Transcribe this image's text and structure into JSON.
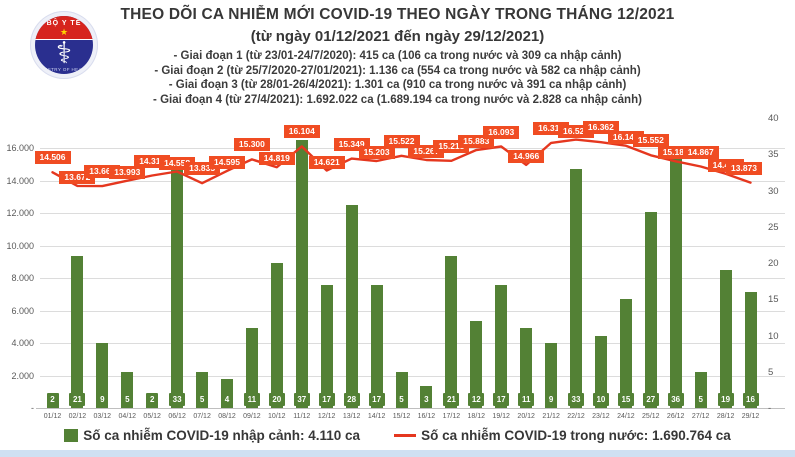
{
  "logo": {
    "arc_text": "BỘ Y TẾ",
    "bottom_text": "MINISTRY OF HEALTH",
    "colors": {
      "red": "#d6241e",
      "blue": "#2a2f8f",
      "star": "#ffd400"
    }
  },
  "chart_data": {
    "type": "combo-bar-line",
    "title": "THEO DÕI CA NHIỄM MỚI COVID-19 THEO NGÀY TRONG THÁNG 12/2021",
    "subtitle": "(từ ngày 01/12/2021 đến ngày 29/12/2021)",
    "annotations": [
      "- Giai đoạn 1 (từ 23/01-24/7/2020): 415 ca (106 ca trong nước và 309 ca nhập cảnh)",
      "- Giai đoạn 2 (từ 25/7/2020-27/01/2021): 1.136 ca (554 ca trong nước và 582 ca nhập cảnh)",
      "- Giai đoạn 3 (từ 28/01-26/4/2021): 1.301 ca (910 ca trong nước và 391 ca nhập cảnh)",
      "- Giai đoạn 4 (từ 27/4/2021): 1.692.022 ca (1.689.194 ca trong nước và 2.828 ca nhập cảnh)"
    ],
    "categories": [
      "01/12",
      "02/12",
      "03/12",
      "04/12",
      "05/12",
      "06/12",
      "07/12",
      "08/12",
      "09/12",
      "10/12",
      "11/12",
      "12/12",
      "13/12",
      "14/12",
      "15/12",
      "16/12",
      "17/12",
      "18/12",
      "19/12",
      "20/12",
      "21/12",
      "22/12",
      "23/12",
      "24/12",
      "25/12",
      "26/12",
      "27/12",
      "28/12",
      "29/12"
    ],
    "series": [
      {
        "name": "Số ca nhiễm COVID-19 nhập cảnh",
        "type": "bar",
        "axis": "right",
        "color": "#538135",
        "values": [
          2,
          21,
          9,
          5,
          2,
          33,
          5,
          4,
          11,
          20,
          37,
          17,
          28,
          17,
          5,
          3,
          21,
          12,
          17,
          11,
          9,
          33,
          10,
          15,
          27,
          36,
          5,
          19,
          16
        ]
      },
      {
        "name": "Số ca nhiễm COVID-19 trong nước",
        "type": "line",
        "axis": "left",
        "color": "#e5371f",
        "label_bg": "#f04c22",
        "values": [
          14506,
          13672,
          13661,
          13993,
          14312,
          14558,
          13835,
          14595,
          15300,
          14819,
          16104,
          14621,
          15349,
          15203,
          15522,
          15267,
          15215,
          15883,
          16093,
          14966,
          16318,
          16522,
          16362,
          16142,
          15552,
          15182,
          14867,
          14421,
          13873
        ],
        "labels": [
          "14.506",
          "13.672",
          "13.661",
          "13.993",
          "14.312",
          "14.558",
          "13.835",
          "14.595",
          "15.300",
          "14.819",
          "16.104",
          "14.621",
          "15.349",
          "15.203",
          "15.522",
          "15.267",
          "15.215",
          "15.883",
          "16.093",
          "14.966",
          "16.318",
          "16.522",
          "16.362",
          "16.142",
          "15.552",
          "15.182",
          "14.867",
          "14.421",
          "13.873"
        ]
      }
    ],
    "left_axis": {
      "ticks": [
        "16.000",
        "14.000",
        "12.000",
        "10.000",
        "8.000",
        "6.000",
        "4.000",
        "2.000",
        "-"
      ],
      "tick_values": [
        16000,
        14000,
        12000,
        10000,
        8000,
        6000,
        4000,
        2000,
        0
      ],
      "max": 16000
    },
    "right_axis": {
      "ticks": [
        "40",
        "35",
        "30",
        "25",
        "20",
        "15",
        "10",
        "5",
        "-"
      ],
      "tick_values": [
        40,
        35,
        30,
        25,
        20,
        15,
        10,
        5,
        0
      ],
      "max": 40
    },
    "grid": true,
    "legend_position": "bottom",
    "legend": [
      {
        "swatch": "bar",
        "label": "Số ca nhiễm COVID-19 nhập cảnh: 4.110 ca"
      },
      {
        "swatch": "line",
        "label": "Số ca nhiễm COVID-19 trong nước: 1.690.764 ca"
      }
    ]
  }
}
